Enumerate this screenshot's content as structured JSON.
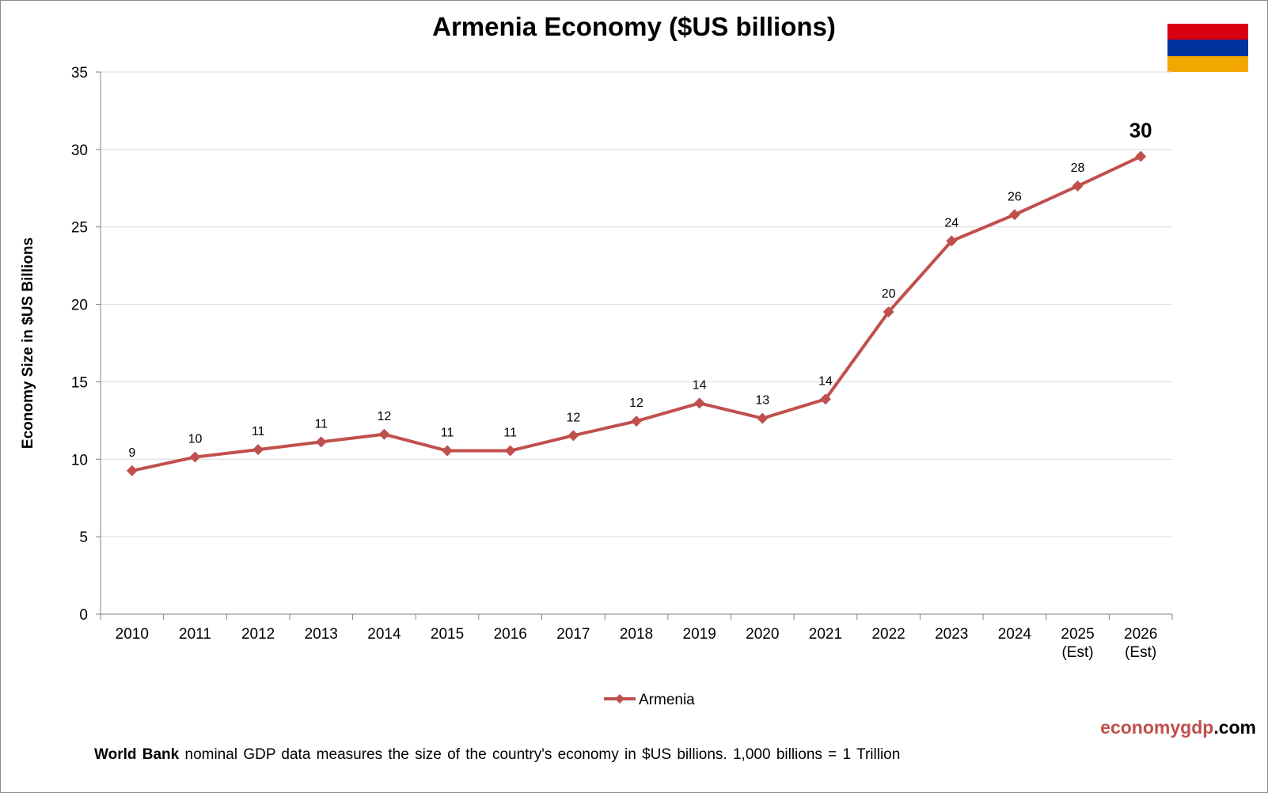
{
  "colors": {
    "series": "#c0504d",
    "grid": "#d9d9d9",
    "axis": "#808080",
    "brand_primary": "#c0504d",
    "brand_secondary": "#000000",
    "flag_red": "#d90012",
    "flag_blue": "#0033a0",
    "flag_orange": "#f2a800"
  },
  "flag": {
    "icon": "armenia-flag"
  },
  "brand": {
    "part1": "economy",
    "part2": "gdp",
    "part3": ".com"
  },
  "footer": {
    "bold": "World Bank",
    "text": " nominal GDP data  measures the size of the country's economy in $US billions.  1,000 billions = 1 Trillion"
  },
  "chart_data": {
    "type": "line",
    "title": "Armenia Economy ($US billions)",
    "xlabel": "",
    "ylabel": "Economy Size in $US Billions",
    "ylim": [
      0,
      35
    ],
    "yticks": [
      0,
      5,
      10,
      15,
      20,
      25,
      30,
      35
    ],
    "grid": true,
    "legend_position": "bottom",
    "categories": [
      [
        "2010"
      ],
      [
        "2011"
      ],
      [
        "2012"
      ],
      [
        "2013"
      ],
      [
        "2014"
      ],
      [
        "2015"
      ],
      [
        "2016"
      ],
      [
        "2017"
      ],
      [
        "2018"
      ],
      [
        "2019"
      ],
      [
        "2020"
      ],
      [
        "2021"
      ],
      [
        "2022"
      ],
      [
        "2023"
      ],
      [
        "2024"
      ],
      [
        "2025",
        "(Est)"
      ],
      [
        "2026",
        "(Est)"
      ]
    ],
    "series": [
      {
        "name": "Armenia",
        "values": [
          9.26,
          10.14,
          10.62,
          11.12,
          11.61,
          10.55,
          10.55,
          11.53,
          12.46,
          13.62,
          12.64,
          13.88,
          19.51,
          24.09,
          25.79,
          27.64,
          29.55
        ],
        "labels": [
          "9",
          "10",
          "11",
          "11",
          "12",
          "11",
          "11",
          "12",
          "12",
          "14",
          "13",
          "14",
          "20",
          "24",
          "26",
          "28",
          "30"
        ],
        "marker": "diamond"
      }
    ]
  }
}
